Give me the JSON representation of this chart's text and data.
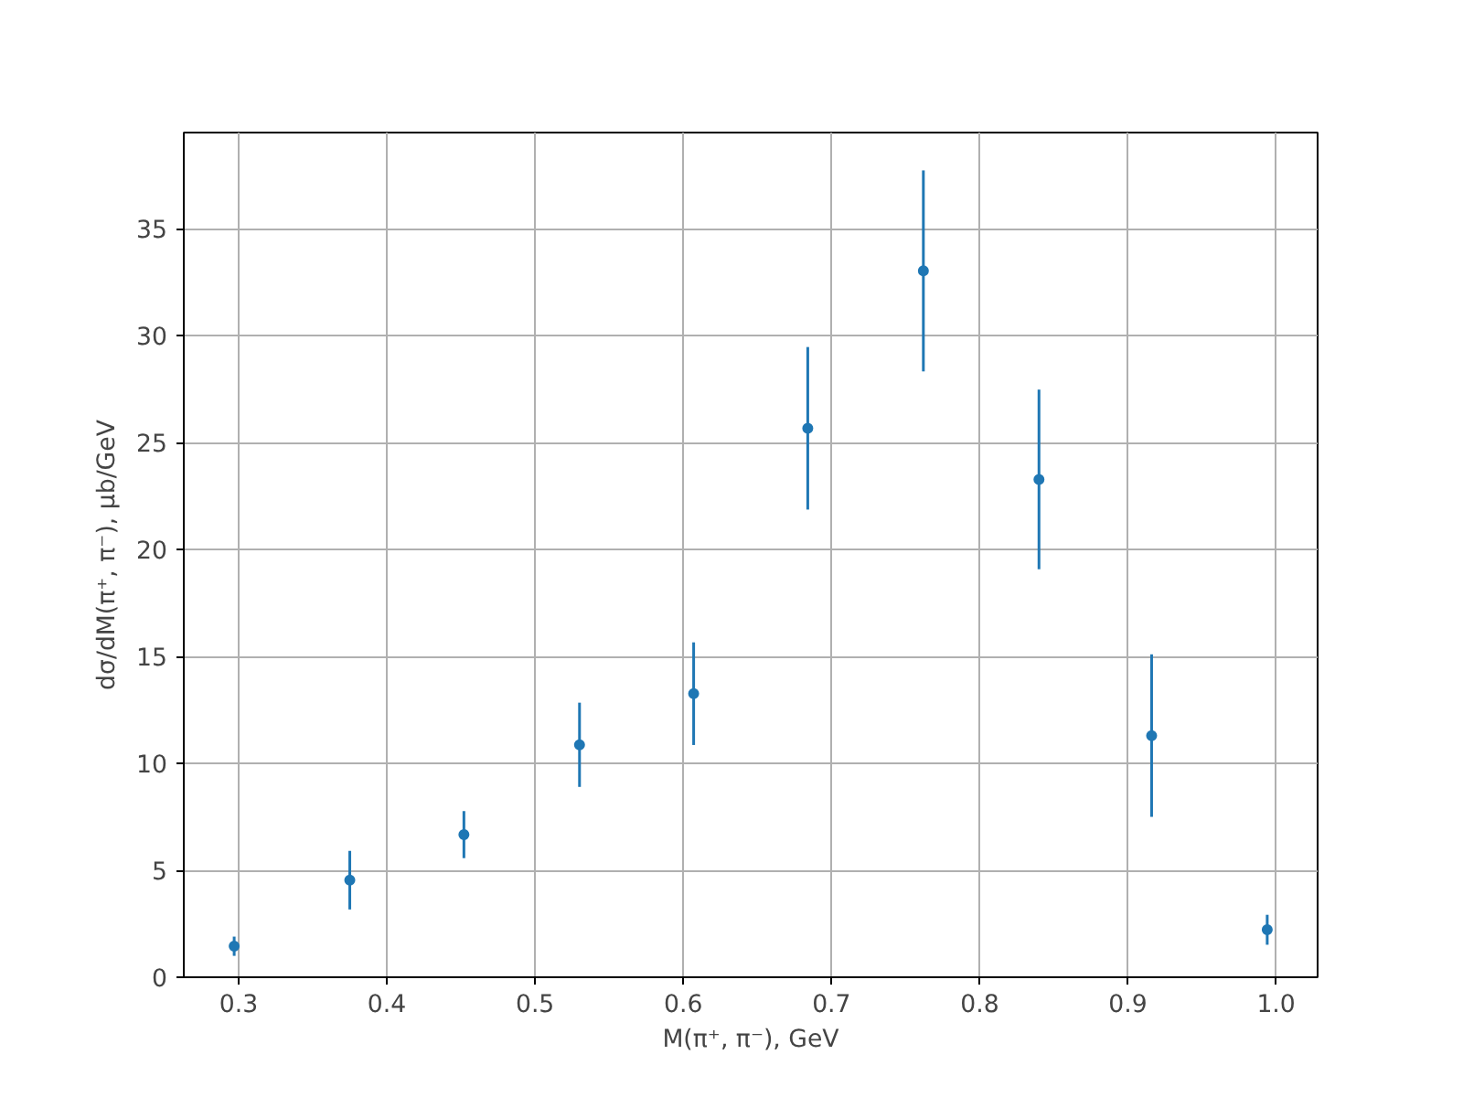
{
  "chart_data": {
    "type": "scatter",
    "xlabel": "M(π⁺, π⁻), GeV",
    "ylabel": "dσ/dM(π⁺, π⁻), μb/GeV",
    "x": [
      0.297,
      0.375,
      0.452,
      0.53,
      0.607,
      0.684,
      0.762,
      0.84,
      0.916,
      0.994
    ],
    "series": [
      {
        "color": "#1f77b4",
        "values": [
          1.45,
          4.54,
          6.67,
          10.87,
          13.26,
          25.67,
          33.03,
          23.28,
          11.3,
          2.22
        ],
        "errors": [
          0.45,
          1.37,
          1.1,
          1.97,
          2.4,
          3.8,
          4.7,
          4.2,
          3.8,
          0.7
        ]
      }
    ],
    "xlim": [
      0.263,
      1.028
    ],
    "ylim": [
      0,
      39.5
    ],
    "xticks": [
      {
        "value": 0.3,
        "label": "0.3"
      },
      {
        "value": 0.4,
        "label": "0.4"
      },
      {
        "value": 0.5,
        "label": "0.5"
      },
      {
        "value": 0.6,
        "label": "0.6"
      },
      {
        "value": 0.7,
        "label": "0.7"
      },
      {
        "value": 0.8,
        "label": "0.8"
      },
      {
        "value": 0.9,
        "label": "0.9"
      },
      {
        "value": 1.0,
        "label": "1.0"
      }
    ],
    "yticks": [
      0,
      5,
      10,
      15,
      20,
      25,
      30,
      35
    ],
    "grid": true,
    "marker": "circle"
  }
}
